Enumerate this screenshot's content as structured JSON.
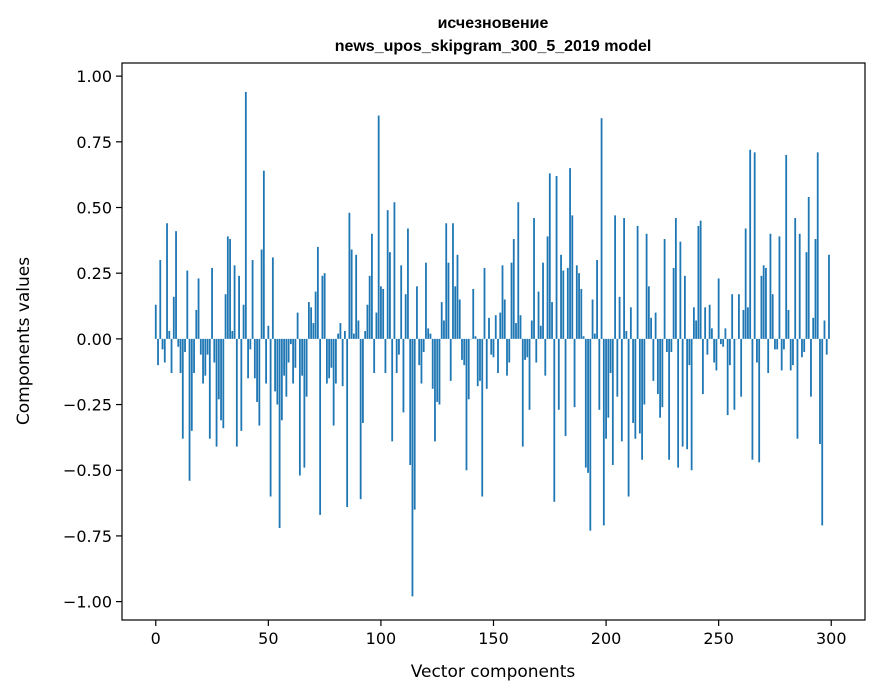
{
  "chart_data": {
    "type": "bar",
    "title_line1": "исчезновение",
    "title_line2": "news_upos_skipgram_300_5_2019 model",
    "xlabel": "Vector components",
    "ylabel": "Components values",
    "xlim": [
      -15,
      315
    ],
    "ylim": [
      -1.07,
      1.05
    ],
    "xticks": [
      0,
      50,
      100,
      150,
      200,
      250,
      300
    ],
    "xtick_labels": [
      "0",
      "50",
      "100",
      "150",
      "200",
      "250",
      "300"
    ],
    "yticks": [
      -1.0,
      -0.75,
      -0.5,
      -0.25,
      0.0,
      0.25,
      0.5,
      0.75,
      1.0
    ],
    "ytick_labels": [
      "−1.00",
      "−0.75",
      "−0.50",
      "−0.25",
      "0.00",
      "0.25",
      "0.50",
      "0.75",
      "1.00"
    ],
    "grid": false,
    "bar_color": "#1f77b4",
    "values": [
      0.13,
      -0.1,
      0.3,
      -0.04,
      -0.09,
      0.44,
      0.03,
      -0.13,
      0.16,
      0.41,
      -0.03,
      -0.13,
      -0.38,
      -0.05,
      0.26,
      -0.54,
      -0.35,
      -0.13,
      0.11,
      0.23,
      -0.06,
      -0.17,
      -0.14,
      -0.06,
      -0.38,
      0.27,
      -0.09,
      -0.41,
      -0.23,
      -0.31,
      -0.34,
      0.17,
      0.39,
      0.38,
      0.03,
      0.28,
      -0.41,
      0.24,
      -0.35,
      0.13,
      0.94,
      -0.15,
      -0.04,
      0.3,
      -0.15,
      -0.24,
      -0.33,
      0.34,
      0.64,
      -0.17,
      0.05,
      -0.6,
      0.31,
      -0.2,
      -0.25,
      -0.72,
      -0.31,
      -0.14,
      -0.22,
      -0.09,
      -0.02,
      -0.17,
      -0.11,
      0.1,
      -0.52,
      -0.14,
      -0.49,
      -0.22,
      0.14,
      0.12,
      0.06,
      0.18,
      0.35,
      -0.67,
      0.24,
      0.25,
      -0.17,
      -0.15,
      -0.11,
      -0.33,
      -0.17,
      0.02,
      0.06,
      -0.18,
      0.03,
      -0.64,
      0.48,
      0.34,
      0.02,
      0.32,
      0.07,
      -0.61,
      -0.32,
      0.03,
      0.13,
      0.24,
      0.4,
      -0.13,
      0.1,
      0.85,
      0.2,
      0.19,
      -0.13,
      0.49,
      0.33,
      -0.39,
      0.52,
      -0.13,
      -0.06,
      0.28,
      -0.28,
      0.17,
      0.42,
      -0.48,
      -0.98,
      -0.65,
      0.2,
      -0.1,
      -0.17,
      -0.05,
      0.29,
      0.04,
      0.02,
      -0.19,
      -0.39,
      -0.24,
      -0.25,
      0.14,
      0.07,
      0.44,
      0.29,
      -0.16,
      0.44,
      0.2,
      0.32,
      0.15,
      -0.08,
      -0.1,
      -0.5,
      -0.23,
      0.0,
      0.19,
      0.01,
      -0.18,
      -0.16,
      -0.6,
      0.27,
      -0.19,
      0.08,
      -0.06,
      -0.07,
      0.09,
      -0.13,
      0.1,
      0.28,
      0.15,
      -0.14,
      -0.09,
      0.29,
      0.38,
      0.06,
      0.52,
      0.09,
      -0.41,
      -0.08,
      -0.07,
      -0.27,
      0.07,
      0.46,
      -0.09,
      0.18,
      0.05,
      0.29,
      -0.14,
      0.39,
      0.63,
      0.14,
      -0.62,
      0.62,
      -0.27,
      0.32,
      0.26,
      -0.37,
      0.27,
      0.65,
      0.47,
      -0.26,
      0.28,
      0.25,
      0.19,
      0.01,
      -0.49,
      -0.51,
      -0.73,
      0.15,
      0.02,
      0.3,
      -0.27,
      0.84,
      -0.71,
      -0.38,
      -0.3,
      -0.13,
      -0.48,
      0.47,
      -0.22,
      0.16,
      -0.39,
      0.46,
      0.03,
      -0.6,
      0.12,
      -0.32,
      -0.38,
      0.43,
      -0.36,
      -0.46,
      -0.25,
      0.4,
      0.2,
      0.08,
      -0.16,
      0.1,
      -0.21,
      -0.3,
      -0.26,
      0.38,
      -0.05,
      -0.46,
      -0.05,
      0.27,
      0.46,
      -0.49,
      0.37,
      -0.41,
      0.24,
      -0.42,
      -0.1,
      -0.5,
      0.12,
      0.07,
      0.43,
      0.45,
      -0.21,
      0.12,
      -0.06,
      0.13,
      0.04,
      -0.09,
      -0.12,
      0.23,
      -0.02,
      -0.03,
      0.04,
      -0.29,
      -0.1,
      0.17,
      -0.27,
      0.0,
      0.17,
      -0.22,
      0.11,
      0.42,
      0.12,
      0.72,
      -0.46,
      0.71,
      -0.09,
      -0.47,
      0.24,
      0.28,
      0.27,
      -0.13,
      0.4,
      0.17,
      -0.04,
      -0.04,
      0.39,
      -0.12,
      -0.04,
      0.7,
      0.11,
      -0.12,
      -0.1,
      0.46,
      -0.38,
      0.4,
      -0.07,
      -0.05,
      0.33,
      0.54,
      -0.22,
      0.08,
      0.38,
      0.71,
      -0.4,
      -0.71,
      0.07,
      -0.06,
      0.32
    ]
  }
}
